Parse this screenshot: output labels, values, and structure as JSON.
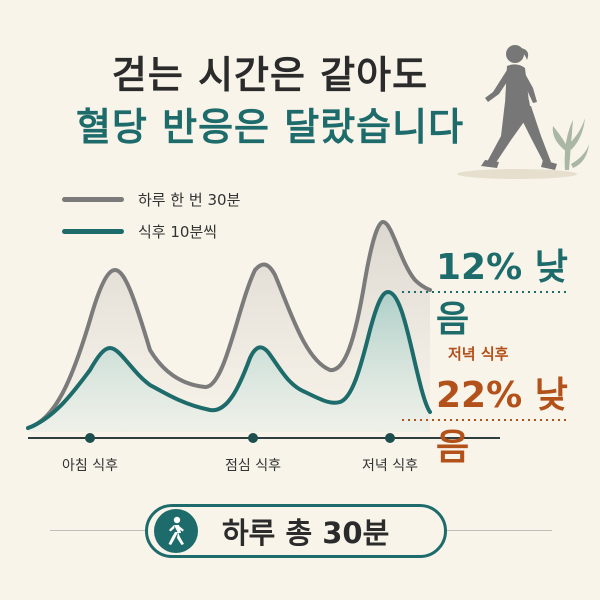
{
  "header": {
    "title_line1": "걷는 시간은 같아도",
    "title_line2": "혈당 반응은 달랐습니다"
  },
  "colors": {
    "series_gray": "#7b7b7b",
    "series_teal": "#1d6b6a",
    "accent_orange": "#b3511a"
  },
  "chart_data": {
    "type": "area",
    "xlabel": "",
    "ylabel": "",
    "categories": [
      "아침 식후",
      "점심 식후",
      "저녁 식후"
    ],
    "series": [
      {
        "name": "하루 한 번 30분",
        "peaks": [
          "high",
          "high",
          "highest"
        ]
      },
      {
        "name": "식후 10분씩",
        "peaks": [
          "medium",
          "medium",
          "high"
        ]
      }
    ],
    "annotations": [
      {
        "label": "",
        "value": "12% 낮음"
      },
      {
        "label": "저녁 식후",
        "value": "22% 낮음"
      }
    ]
  },
  "legend": {
    "items": [
      {
        "label": "하루 한 번 30분"
      },
      {
        "label": "식후 10분씩"
      }
    ]
  },
  "annotation": {
    "gray_value": "12% 낮음",
    "teal_label": "저녁 식후",
    "teal_value": "22% 낮음"
  },
  "xaxis": {
    "ticks": [
      "아침 식후",
      "점심 식후",
      "저녁 식후"
    ]
  },
  "footer": {
    "pill_text": "하루 총 30분",
    "icon": "walking-person-icon"
  },
  "decor": {
    "walker_icon": "walking-woman-illustration",
    "plant_icon": "leaf-plant-icon"
  }
}
